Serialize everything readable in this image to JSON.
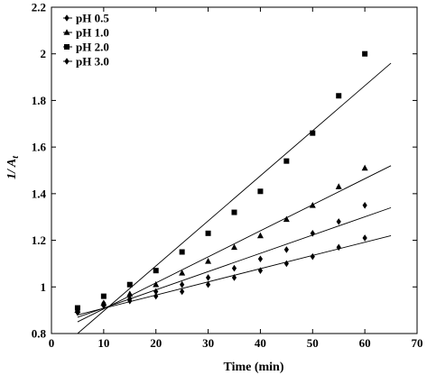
{
  "chart_data": {
    "type": "scatter",
    "xlabel": "Time (min)",
    "ylabel": "1/ A",
    "ylabel_sub": "t",
    "xlim": [
      0,
      70
    ],
    "ylim": [
      0.8,
      2.2
    ],
    "xticks": [
      0,
      10,
      20,
      30,
      40,
      50,
      60,
      70
    ],
    "yticks": [
      0.8,
      1,
      1.2,
      1.4,
      1.6,
      1.8,
      2,
      2.2
    ],
    "xtick_labels": [
      "0",
      "10",
      "20",
      "30",
      "40",
      "50",
      "60",
      "70"
    ],
    "ytick_labels": [
      "0.8",
      "1",
      "1.2",
      "1.4",
      "1.6",
      "1.8",
      "2",
      "2.2"
    ],
    "grid": false,
    "legend_position": "top-left",
    "series": [
      {
        "name": "pH 0.5",
        "marker": "diamond",
        "x": [
          5,
          10,
          15,
          20,
          25,
          30,
          35,
          40,
          45,
          50,
          55,
          60
        ],
        "y": [
          0.9,
          0.92,
          0.94,
          0.96,
          0.98,
          1.01,
          1.04,
          1.07,
          1.1,
          1.13,
          1.17,
          1.21
        ],
        "fit": [
          [
            5,
            0.88
          ],
          [
            65,
            1.22
          ]
        ]
      },
      {
        "name": "pH 1.0",
        "marker": "triangle",
        "x": [
          5,
          10,
          15,
          20,
          25,
          30,
          35,
          40,
          45,
          50,
          55,
          60
        ],
        "y": [
          0.9,
          0.93,
          0.97,
          1.01,
          1.06,
          1.11,
          1.17,
          1.22,
          1.29,
          1.35,
          1.43,
          1.51
        ],
        "fit": [
          [
            5,
            0.85
          ],
          [
            65,
            1.52
          ]
        ]
      },
      {
        "name": "pH 2.0",
        "marker": "square",
        "x": [
          5,
          10,
          15,
          20,
          25,
          30,
          35,
          40,
          45,
          50,
          55,
          60
        ],
        "y": [
          0.91,
          0.96,
          1.01,
          1.07,
          1.15,
          1.23,
          1.32,
          1.41,
          1.54,
          1.66,
          1.82,
          2.0
        ],
        "fit": [
          [
            5,
            0.8
          ],
          [
            65,
            1.96
          ]
        ]
      },
      {
        "name": "pH 3.0",
        "marker": "diamond",
        "x": [
          5,
          10,
          15,
          20,
          25,
          30,
          35,
          40,
          45,
          50,
          55,
          60
        ],
        "y": [
          0.89,
          0.93,
          0.95,
          0.98,
          1.01,
          1.04,
          1.08,
          1.12,
          1.16,
          1.23,
          1.28,
          1.35
        ],
        "fit": [
          [
            5,
            0.87
          ],
          [
            65,
            1.34
          ]
        ]
      }
    ]
  }
}
